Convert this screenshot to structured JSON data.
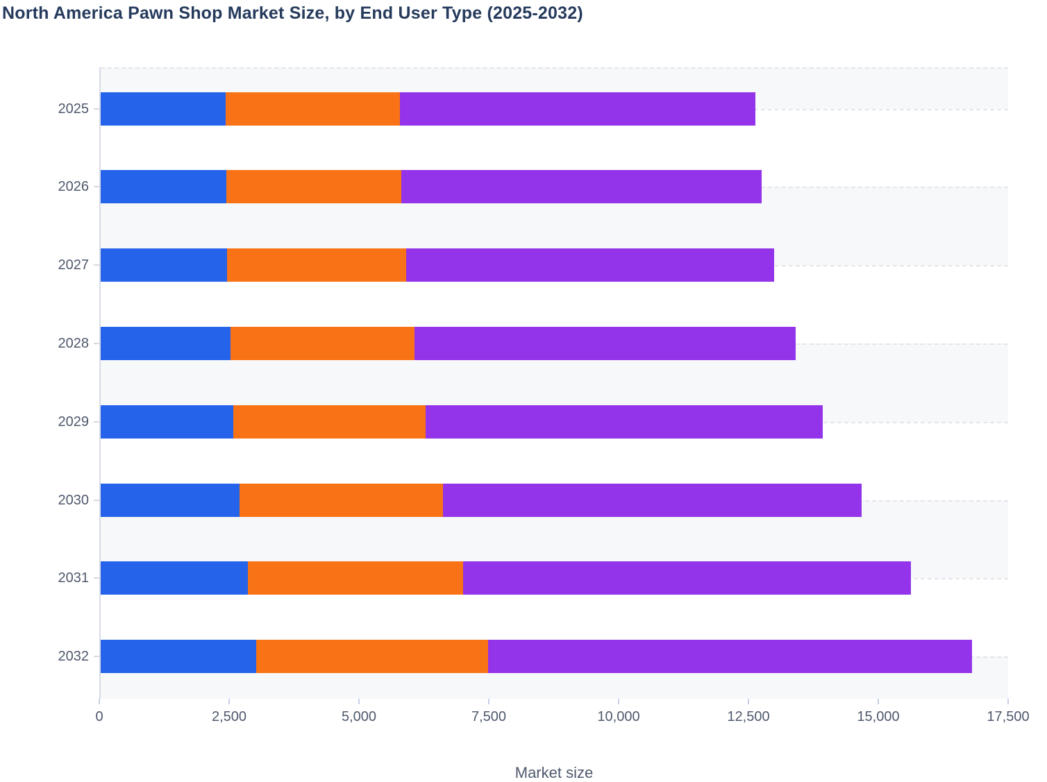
{
  "title": "North America Pawn Shop Market Size, by End User Type (2025-2032)",
  "chart_data": {
    "type": "bar",
    "orientation": "horizontal",
    "stacked": true,
    "title": "North America Pawn Shop Market Size, by End User Type (2025-2032)",
    "xlabel": "Market size",
    "ylabel": "",
    "categories": [
      "2025",
      "2026",
      "2027",
      "2028",
      "2029",
      "2030",
      "2031",
      "2032"
    ],
    "series": [
      {
        "name": "",
        "color": "#2563eb",
        "values": [
          2410,
          2420,
          2435,
          2495,
          2550,
          2680,
          2830,
          3000
        ]
      },
      {
        "name": "",
        "color": "#f97316",
        "values": [
          3355,
          3370,
          3450,
          3550,
          3705,
          3905,
          4145,
          4465
        ]
      },
      {
        "name": "",
        "color": "#9333ea",
        "values": [
          6845,
          6940,
          7080,
          7335,
          7645,
          8065,
          8625,
          9320
        ]
      }
    ],
    "totals": [
      12610,
      12730,
      12965,
      13380,
      13900,
      14650,
      15600,
      16785
    ],
    "xlim": [
      0,
      17500
    ],
    "x_ticks": [
      0,
      2500,
      5000,
      7500,
      10000,
      12500,
      15000,
      17500
    ],
    "x_tick_labels": [
      "0",
      "2,500",
      "5,000",
      "7,500",
      "10,000",
      "12,500",
      "15,000",
      "17,500"
    ],
    "grid": "horizontal dashed band borders, alternating band fill",
    "legend_position": "none"
  },
  "colors": {
    "title_text": "#253a5c",
    "axis_text": "#4e586c",
    "band_gray": "#f7f8fa",
    "band_white": "#ffffff",
    "dash_line": "#e3e5ea",
    "axis_line": "#c9cfe4",
    "series_blue": "#2563eb",
    "series_orange": "#f97316",
    "series_purple": "#9333ea"
  }
}
